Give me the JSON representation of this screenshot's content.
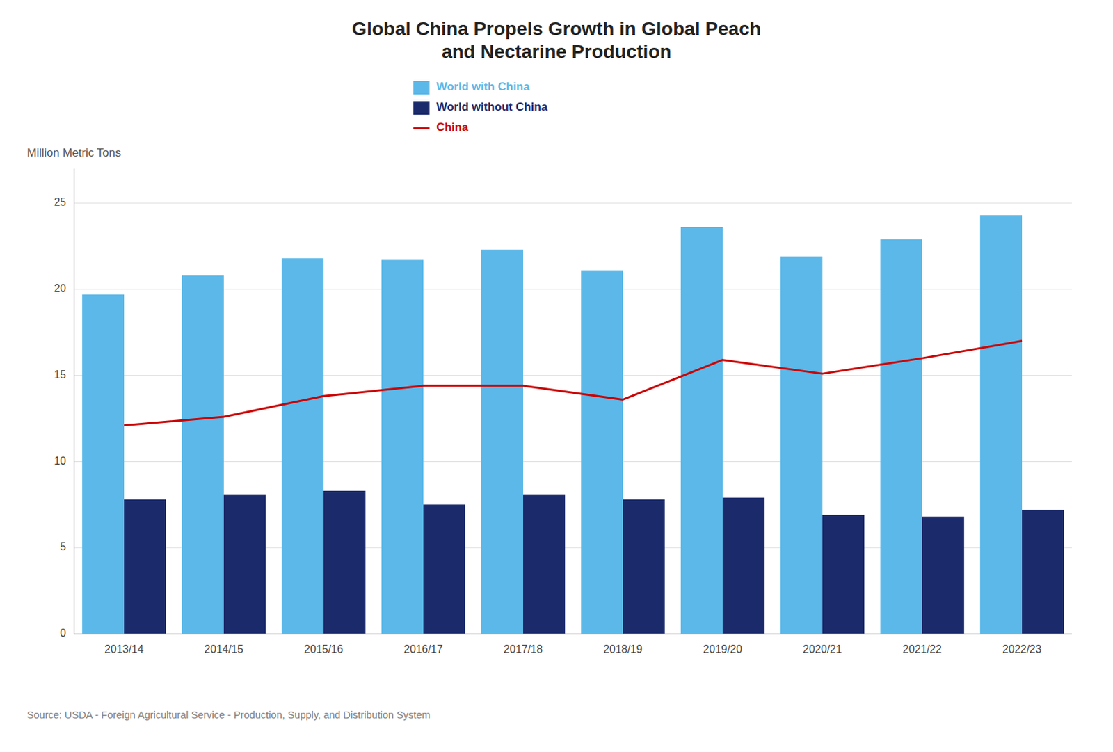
{
  "chart_data": {
    "type": "bar",
    "title": "Global China Propels Growth in Global Peach\nand Nectarine Production",
    "ylabel": "Million Metric Tons",
    "source": "Source: USDA - Foreign Agricultural Service - Production, Supply, and Distribution System",
    "categories": [
      "2013/14",
      "2014/15",
      "2015/16",
      "2016/17",
      "2017/18",
      "2018/19",
      "2019/20",
      "2020/21",
      "2021/22",
      "2022/23"
    ],
    "series": [
      {
        "name": "World with China",
        "color": "#5BB8E8",
        "type": "bar",
        "values": [
          19.7,
          20.8,
          21.8,
          21.7,
          22.3,
          21.1,
          23.6,
          21.9,
          22.9,
          24.3
        ]
      },
      {
        "name": "World without China",
        "color": "#1B2A6B",
        "type": "bar",
        "values": [
          7.8,
          8.1,
          8.3,
          7.5,
          8.1,
          7.8,
          7.9,
          6.9,
          6.8,
          7.2
        ]
      },
      {
        "name": "China",
        "color": "#CC0000",
        "type": "line",
        "values": [
          12.1,
          12.6,
          13.8,
          14.4,
          14.4,
          13.6,
          15.9,
          15.1,
          16.0,
          17.0
        ]
      }
    ],
    "ylim": [
      0,
      27
    ],
    "yticks": [
      0,
      5,
      10,
      15,
      20,
      25
    ],
    "grid": true,
    "legend": "top"
  }
}
